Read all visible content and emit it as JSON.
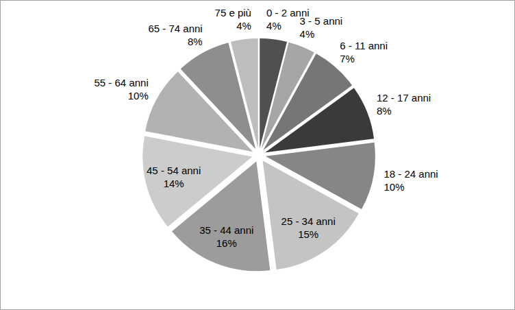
{
  "chart_data": {
    "type": "pie",
    "categories": [
      "0 - 2 anni",
      "3 - 5 anni",
      "6 - 11 anni",
      "12 - 17 anni",
      "18 - 24 anni",
      "25 - 34 anni",
      "35 - 44 anni",
      "45 - 54 anni",
      "55 - 64 anni",
      "65 - 74 anni",
      "75 e più"
    ],
    "values": [
      4,
      4,
      7,
      8,
      10,
      15,
      16,
      14,
      10,
      8,
      4
    ],
    "value_labels": [
      "4%",
      "4%",
      "7%",
      "8%",
      "10%",
      "15%",
      "16%",
      "14%",
      "10%",
      "8%",
      "4%"
    ],
    "colors": [
      "#505050",
      "#a6a6a6",
      "#767676",
      "#3a3a3a",
      "#868686",
      "#c4c4c4",
      "#9c9c9c",
      "#cccccc",
      "#b2b2b2",
      "#8e8e8e",
      "#bdbdbd"
    ],
    "data_labels": true
  }
}
